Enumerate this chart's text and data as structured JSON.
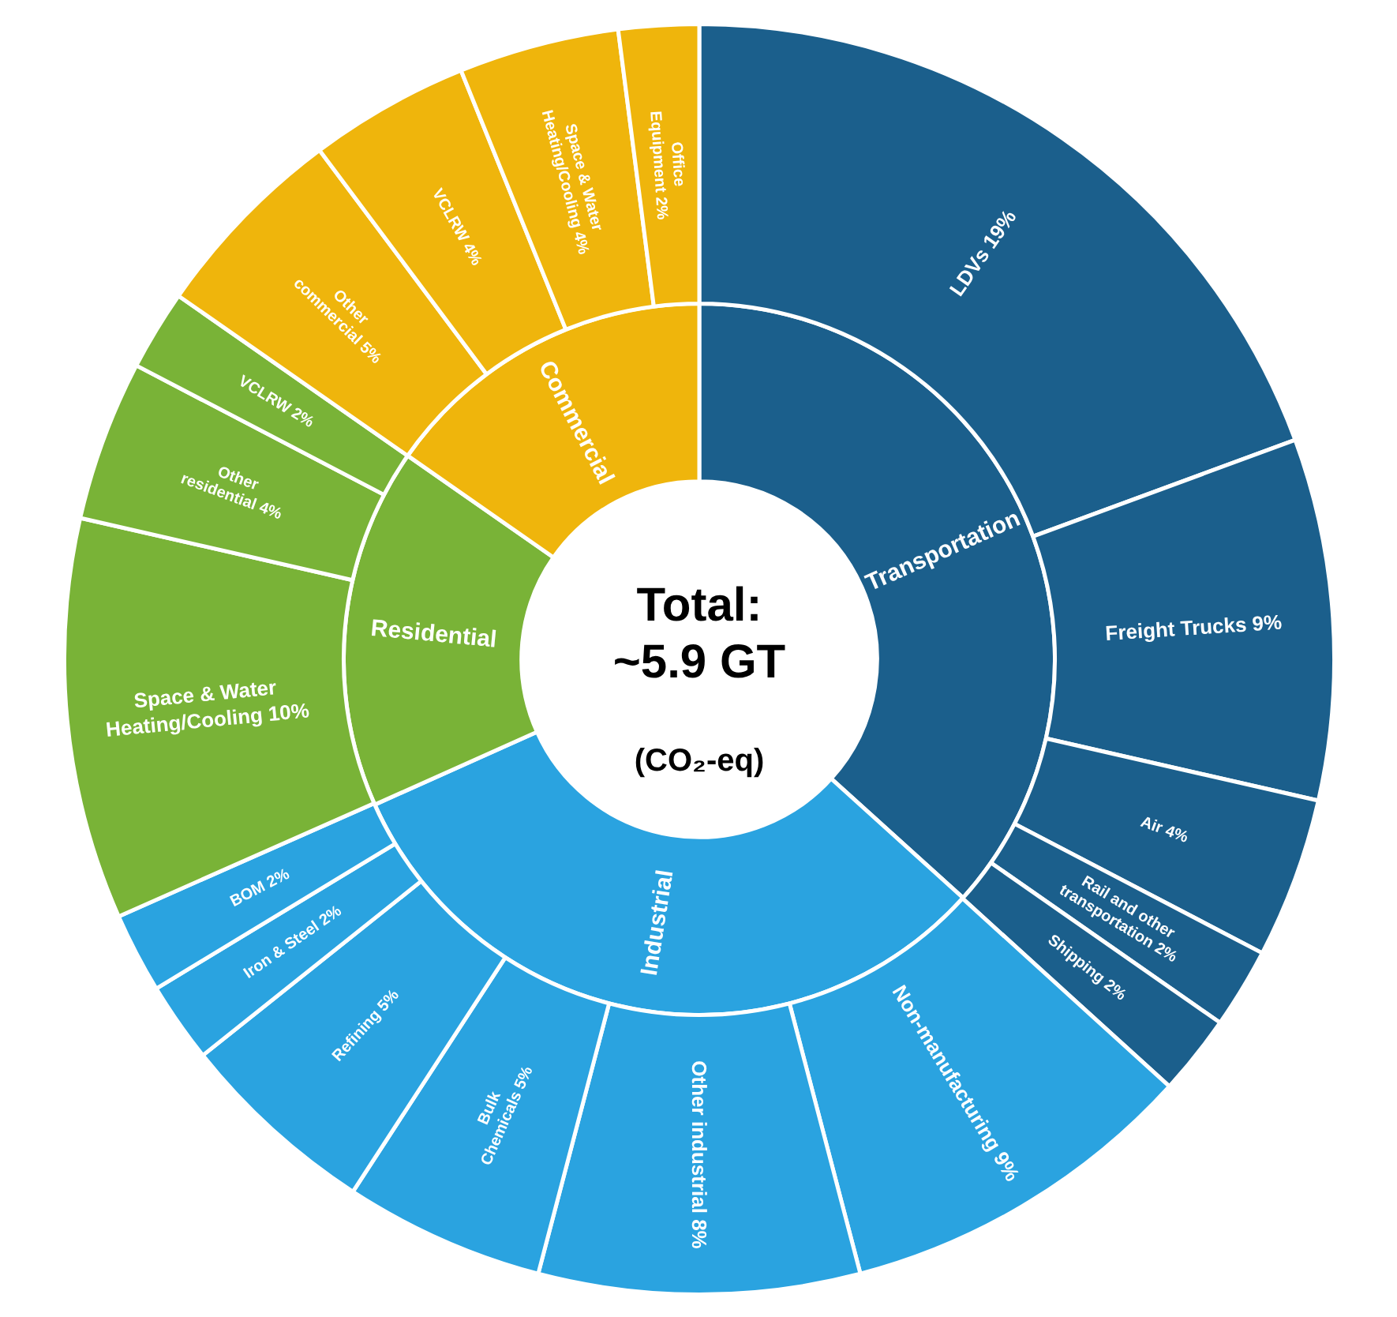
{
  "chart_data": {
    "type": "donut",
    "title": "Total:\n~5.9 GT",
    "subtitle": "(CO₂-eq)",
    "annotations": [
      "Transportation",
      "Industrial",
      "Residential",
      "Commercial"
    ],
    "categories": [
      "LDVs",
      "Freight Trucks",
      "Air",
      "Rail and other transportation",
      "Shipping",
      "Non-manufacturing",
      "Other industrial",
      "Bulk Chemicals",
      "Refining",
      "Iron & Steel",
      "BOM",
      "Space & Water Heating/Cooling",
      "Other residential",
      "VCLRW",
      "Other commercial",
      "VCLRW",
      "Space & Water Heating/Cooling",
      "Office Equipment"
    ],
    "series": [
      {
        "values": [
          36.7,
          null,
          null,
          null,
          null,
          31.6,
          null,
          null,
          null,
          null,
          null,
          16.4,
          null,
          null,
          15.3,
          null,
          null,
          null
        ],
        "colors": [
          "#1b5f8c",
          null,
          null,
          null,
          null,
          "#2aa3e0",
          null,
          null,
          null,
          null,
          null,
          "#79b337",
          null,
          null,
          "#efb50c",
          null,
          null,
          null
        ]
      },
      {
        "values": [
          19,
          9,
          4,
          2,
          2,
          9,
          8,
          5,
          5,
          2,
          2,
          10,
          4,
          2,
          5,
          4,
          4,
          2
        ],
        "value_labels": [
          "19%",
          "9%",
          "4%",
          "2%",
          "2%",
          "9%",
          "8%",
          "5%",
          "5%",
          "2%",
          "2%",
          "10%",
          "4%",
          "2%",
          "5%",
          "4%",
          "4%",
          "2%"
        ],
        "colors": [
          "#1b5f8c",
          "#1b5f8c",
          "#1b5f8c",
          "#1b5f8c",
          "#1b5f8c",
          "#2aa3e0",
          "#2aa3e0",
          "#2aa3e0",
          "#2aa3e0",
          "#2aa3e0",
          "#2aa3e0",
          "#79b337",
          "#79b337",
          "#79b337",
          "#efb50c",
          "#efb50c",
          "#efb50c",
          "#efb50c"
        ]
      }
    ]
  }
}
